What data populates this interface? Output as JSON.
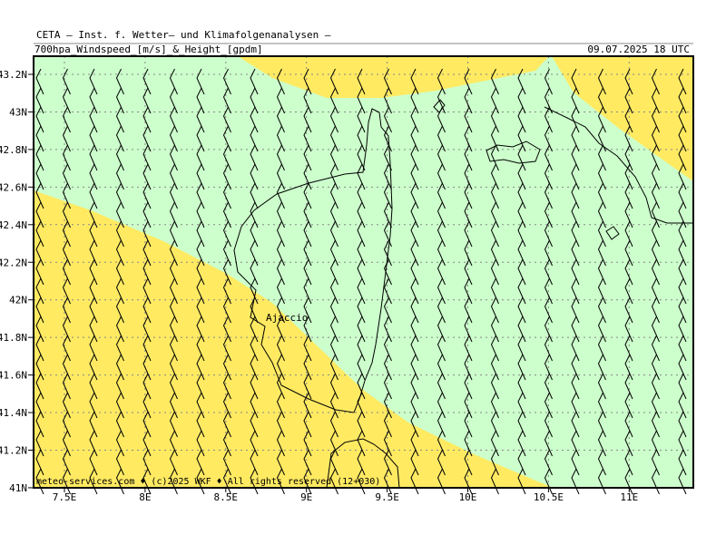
{
  "header": {
    "title": "CETA — Inst. f. Wetter— und Klimafolgenanalysen —",
    "subtitle": "700hpa_Windspeed_[m/s]_&_Height_[gpdm]",
    "datetime": "09.07.2025 18 UTC"
  },
  "map": {
    "lat_labels": [
      "43.2N",
      "43N",
      "42.8N",
      "42.6N",
      "42.4N",
      "42.2N",
      "42N",
      "41.8N",
      "41.6N",
      "41.4N",
      "41.2N",
      "41N"
    ],
    "lon_labels": [
      "7.5E",
      "8E",
      "8.5E",
      "9E",
      "9.5E",
      "10E",
      "10.5E",
      "11E"
    ],
    "place": "Ajaccio",
    "footer": "meteo-services.com ♦ (c)2025 WKF ♦ All rights reserved (12+030)"
  }
}
